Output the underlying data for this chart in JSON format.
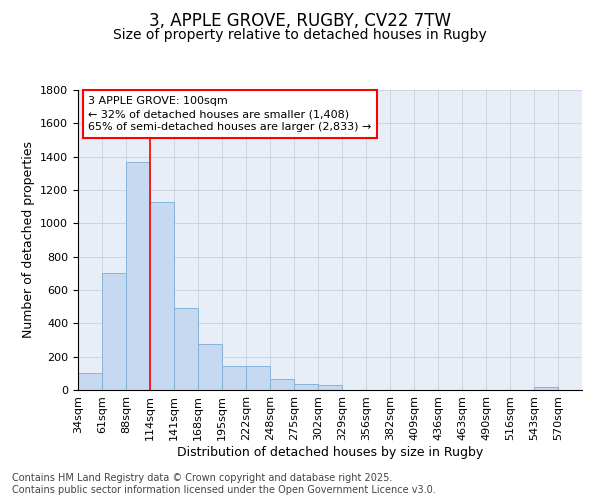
{
  "title_line1": "3, APPLE GROVE, RUGBY, CV22 7TW",
  "title_line2": "Size of property relative to detached houses in Rugby",
  "xlabel": "Distribution of detached houses by size in Rugby",
  "ylabel": "Number of detached properties",
  "bin_labels": [
    "34sqm",
    "61sqm",
    "88sqm",
    "114sqm",
    "141sqm",
    "168sqm",
    "195sqm",
    "222sqm",
    "248sqm",
    "275sqm",
    "302sqm",
    "329sqm",
    "356sqm",
    "382sqm",
    "409sqm",
    "436sqm",
    "463sqm",
    "490sqm",
    "516sqm",
    "543sqm",
    "570sqm"
  ],
  "bar_values": [
    100,
    700,
    1370,
    1130,
    490,
    275,
    145,
    145,
    65,
    35,
    30,
    0,
    0,
    0,
    0,
    0,
    0,
    0,
    0,
    20,
    0
  ],
  "bar_color": "#c6d9f0",
  "bar_edge_color": "#7aadd4",
  "vline_x_index": 3.0,
  "vline_color": "red",
  "ylim": [
    0,
    1800
  ],
  "yticks": [
    0,
    200,
    400,
    600,
    800,
    1000,
    1200,
    1400,
    1600,
    1800
  ],
  "annotation_box_text": "3 APPLE GROVE: 100sqm\n← 32% of detached houses are smaller (1,408)\n65% of semi-detached houses are larger (2,833) →",
  "background_color": "#e8eef8",
  "grid_color": "#c0c8d8",
  "footer_text": "Contains HM Land Registry data © Crown copyright and database right 2025.\nContains public sector information licensed under the Open Government Licence v3.0.",
  "title_fontsize": 12,
  "subtitle_fontsize": 10,
  "axis_label_fontsize": 9,
  "tick_fontsize": 8,
  "annotation_fontsize": 8,
  "footer_fontsize": 7
}
